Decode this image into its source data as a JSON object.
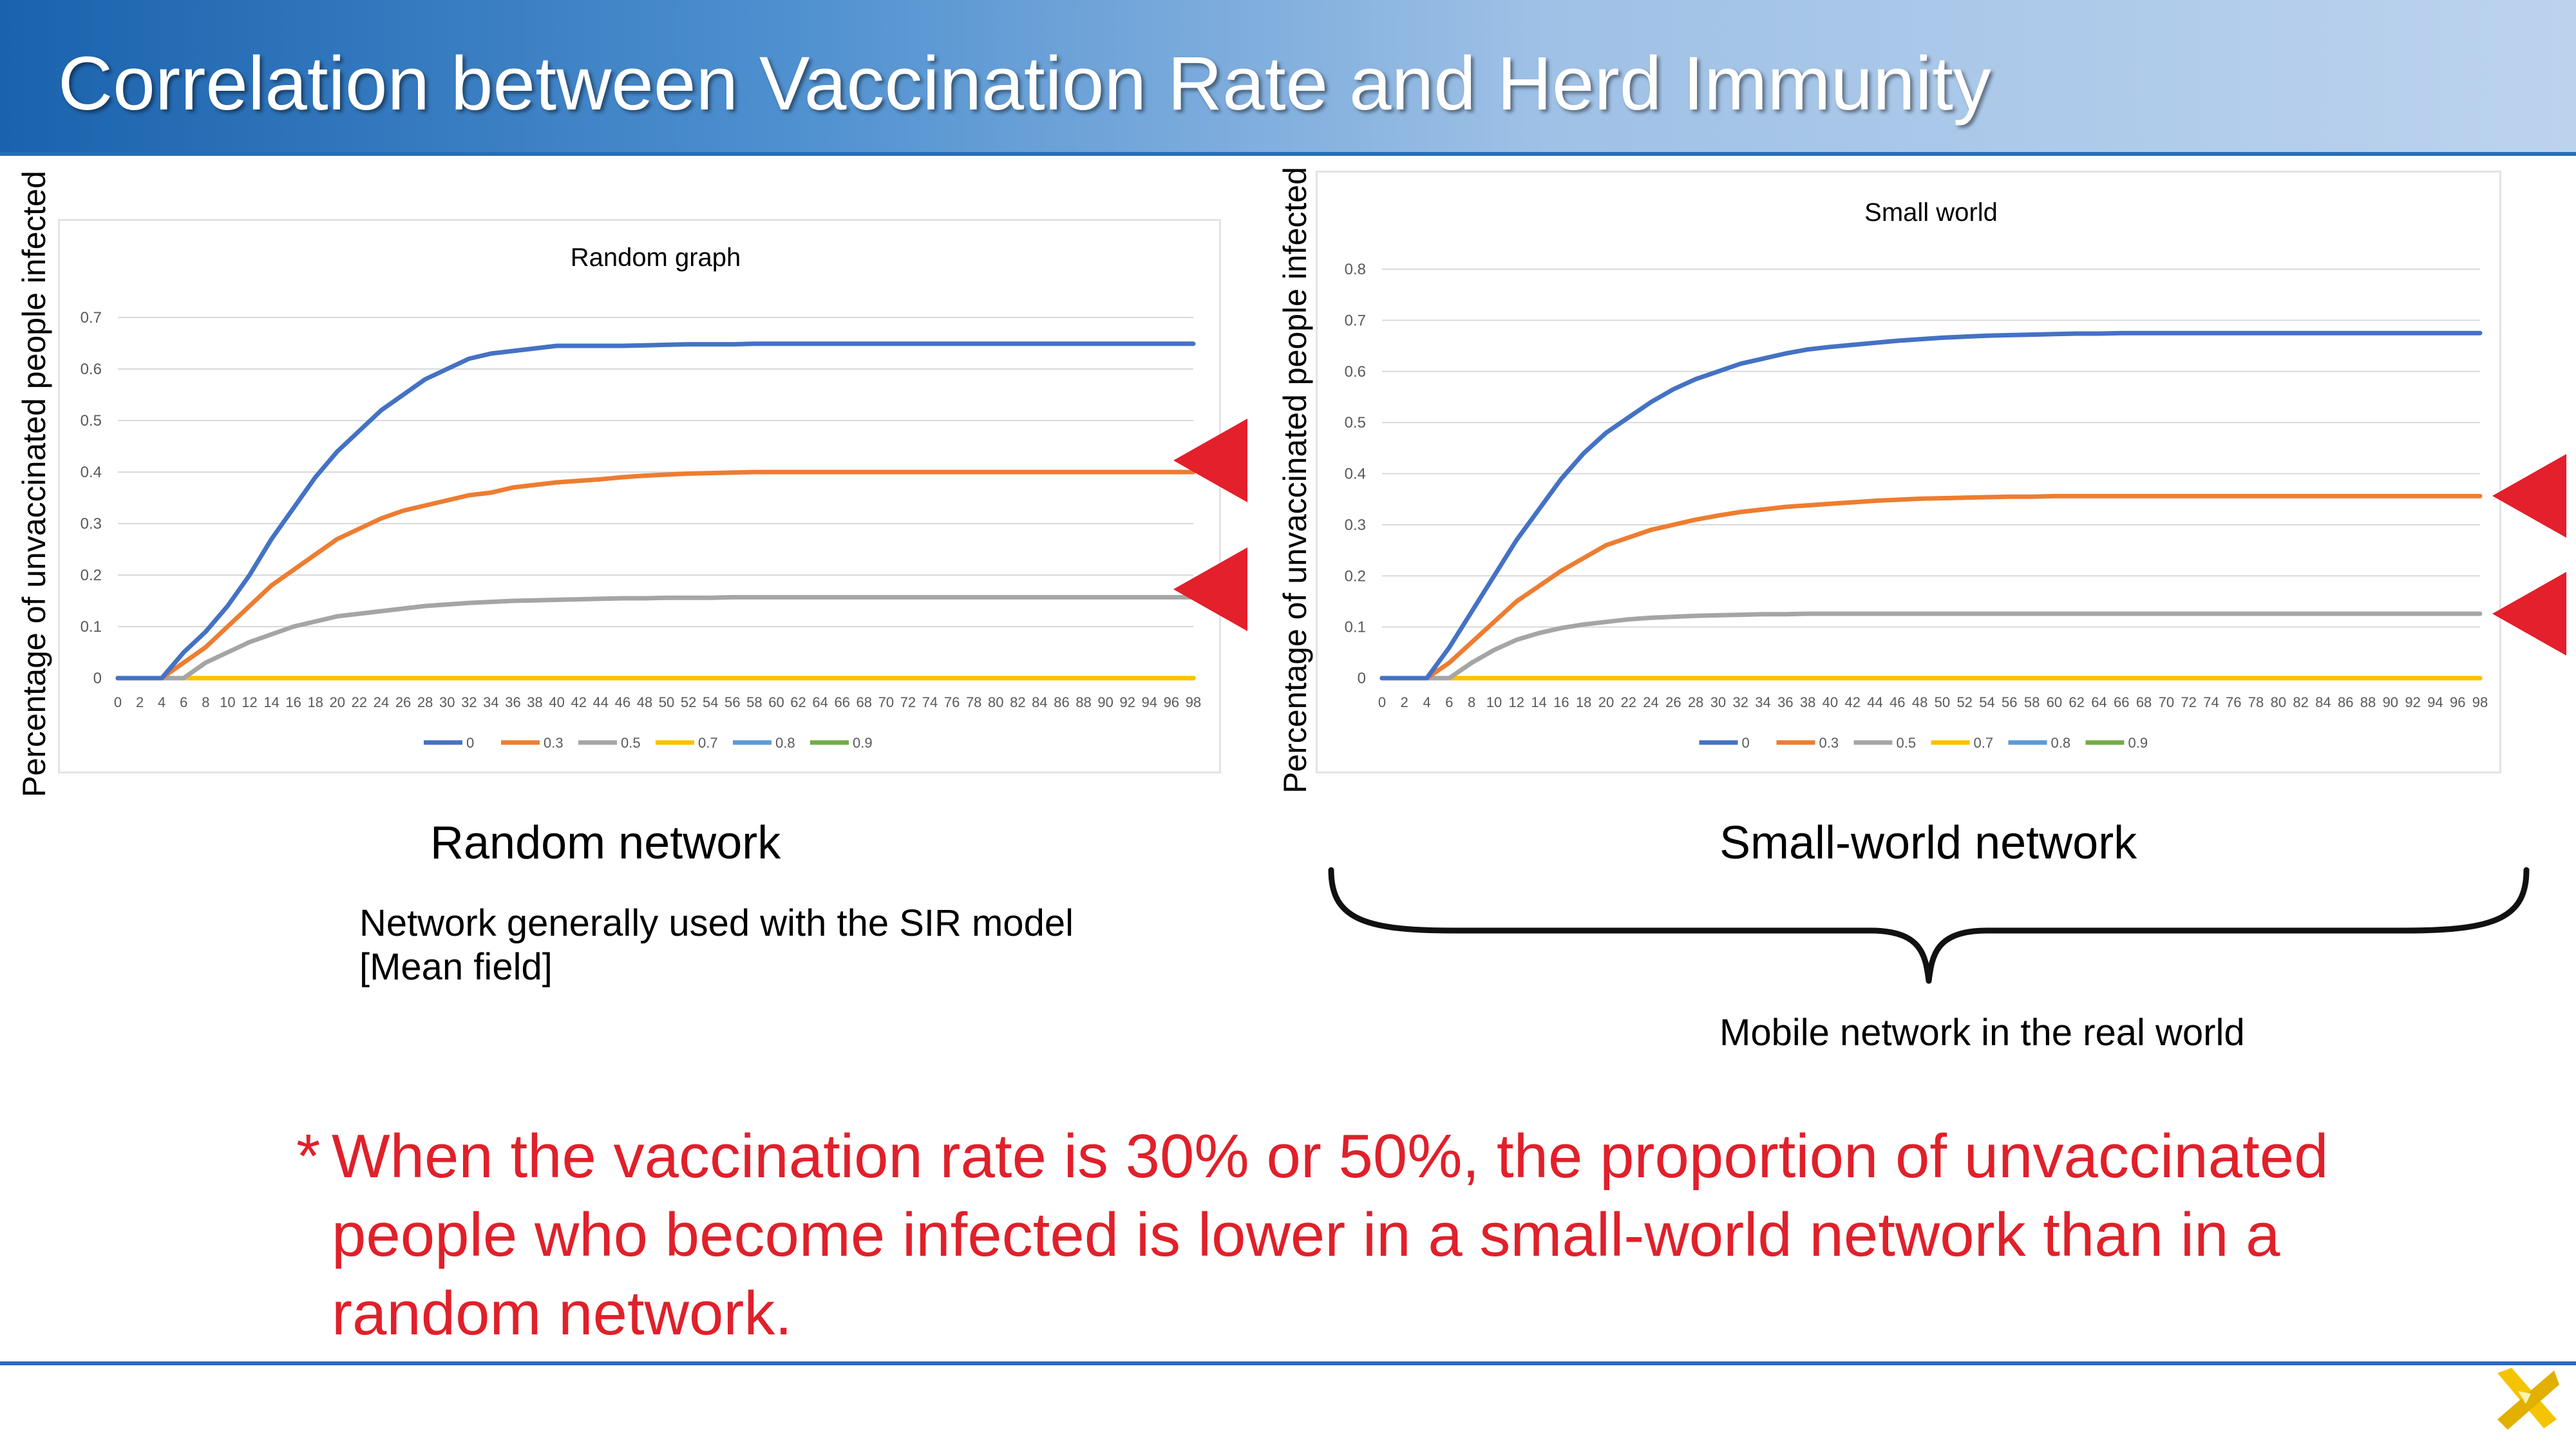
{
  "slide": {
    "title": "Correlation between Vaccination Rate and Herd Immunity",
    "left_caption": "Random network",
    "left_description": [
      "Network generally used with the SIR model",
      "[Mean field]"
    ],
    "right_caption": "Small-world network",
    "right_description": "Mobile network in the real world",
    "note_star": "*",
    "note": "When the vaccination rate is 30% or 50%, the proportion of unvaccinated people who become infected is lower in a small-world network than in a random network.",
    "y_axis_label": "Percentage of unvaccinated people infected",
    "marker_color": "#e3202b",
    "icons": [
      "red-triangle-marker-icon",
      "brace-icon",
      "cross-logo-icon"
    ]
  },
  "chart_data": [
    {
      "type": "line",
      "title": "Random graph",
      "ylabel": "Percentage of unvaccinated people infected",
      "x": [
        0,
        2,
        4,
        6,
        8,
        10,
        12,
        14,
        16,
        18,
        20,
        22,
        24,
        26,
        28,
        30,
        32,
        34,
        36,
        38,
        40,
        42,
        44,
        46,
        48,
        50,
        52,
        54,
        56,
        58,
        60,
        62,
        64,
        66,
        68,
        70,
        72,
        74,
        76,
        78,
        80,
        82,
        84,
        86,
        88,
        90,
        92,
        94,
        96,
        98
      ],
      "ylim": [
        0,
        0.7
      ],
      "yticks": [
        0,
        0.1,
        0.2,
        0.3,
        0.4,
        0.5,
        0.6,
        0.7
      ],
      "grid": true,
      "legend": "bottom",
      "series": [
        {
          "name": "0",
          "color": "#4472c4",
          "values": [
            0,
            0,
            0,
            0.05,
            0.09,
            0.14,
            0.2,
            0.27,
            0.33,
            0.39,
            0.44,
            0.48,
            0.52,
            0.55,
            0.58,
            0.6,
            0.62,
            0.63,
            0.635,
            0.64,
            0.645,
            0.645,
            0.645,
            0.645,
            0.646,
            0.647,
            0.648,
            0.648,
            0.648,
            0.649,
            0.649,
            0.649,
            0.649,
            0.649,
            0.649,
            0.649,
            0.649,
            0.649,
            0.649,
            0.649,
            0.649,
            0.649,
            0.649,
            0.649,
            0.649,
            0.649,
            0.649,
            0.649,
            0.649,
            0.649
          ]
        },
        {
          "name": "0.3",
          "color": "#ed7d31",
          "values": [
            0,
            0,
            0,
            0.03,
            0.06,
            0.1,
            0.14,
            0.18,
            0.21,
            0.24,
            0.27,
            0.29,
            0.31,
            0.325,
            0.335,
            0.345,
            0.355,
            0.36,
            0.37,
            0.375,
            0.38,
            0.383,
            0.386,
            0.39,
            0.393,
            0.395,
            0.397,
            0.398,
            0.399,
            0.4,
            0.4,
            0.4,
            0.4,
            0.4,
            0.4,
            0.4,
            0.4,
            0.4,
            0.4,
            0.4,
            0.4,
            0.4,
            0.4,
            0.4,
            0.4,
            0.4,
            0.4,
            0.4,
            0.4,
            0.4
          ]
        },
        {
          "name": "0.5",
          "color": "#a5a5a5",
          "values": [
            0,
            0,
            0,
            0,
            0.03,
            0.05,
            0.07,
            0.085,
            0.1,
            0.11,
            0.12,
            0.125,
            0.13,
            0.135,
            0.14,
            0.143,
            0.146,
            0.148,
            0.15,
            0.151,
            0.152,
            0.153,
            0.154,
            0.155,
            0.155,
            0.156,
            0.156,
            0.156,
            0.157,
            0.157,
            0.157,
            0.157,
            0.157,
            0.157,
            0.157,
            0.157,
            0.157,
            0.157,
            0.157,
            0.157,
            0.157,
            0.157,
            0.157,
            0.157,
            0.157,
            0.157,
            0.157,
            0.157,
            0.157,
            0.157
          ]
        },
        {
          "name": "0.7",
          "color": "#ffc000",
          "values": [
            0,
            0,
            0,
            0,
            0,
            0,
            0,
            0,
            0,
            0,
            0,
            0,
            0,
            0,
            0,
            0,
            0,
            0,
            0,
            0,
            0,
            0,
            0,
            0,
            0,
            0,
            0,
            0,
            0,
            0,
            0,
            0,
            0,
            0,
            0,
            0,
            0,
            0,
            0,
            0,
            0,
            0,
            0,
            0,
            0,
            0,
            0,
            0,
            0,
            0
          ]
        },
        {
          "name": "0.8",
          "color": "#5b9bd5",
          "values": [
            0,
            0,
            0,
            0,
            0,
            0,
            0,
            0,
            0,
            0,
            0,
            0,
            0,
            0,
            0,
            0,
            0,
            0,
            0,
            0,
            0,
            0,
            0,
            0,
            0,
            0,
            0,
            0,
            0,
            0,
            0,
            0,
            0,
            0,
            0,
            0,
            0,
            0,
            0,
            0,
            0,
            0,
            0,
            0,
            0,
            0,
            0,
            0,
            0,
            0
          ]
        },
        {
          "name": "0.9",
          "color": "#70ad47",
          "values": [
            0,
            0,
            0,
            0,
            0,
            0,
            0,
            0,
            0,
            0,
            0,
            0,
            0,
            0,
            0,
            0,
            0,
            0,
            0,
            0,
            0,
            0,
            0,
            0,
            0,
            0,
            0,
            0,
            0,
            0,
            0,
            0,
            0,
            0,
            0,
            0,
            0,
            0,
            0,
            0,
            0,
            0,
            0,
            0,
            0,
            0,
            0,
            0,
            0,
            0
          ]
        }
      ]
    },
    {
      "type": "line",
      "title": "Small world",
      "ylabel": "Percentage of unvaccinated people infected",
      "x": [
        0,
        2,
        4,
        6,
        8,
        10,
        12,
        14,
        16,
        18,
        20,
        22,
        24,
        26,
        28,
        30,
        32,
        34,
        36,
        38,
        40,
        42,
        44,
        46,
        48,
        50,
        52,
        54,
        56,
        58,
        60,
        62,
        64,
        66,
        68,
        70,
        72,
        74,
        76,
        78,
        80,
        82,
        84,
        86,
        88,
        90,
        92,
        94,
        96,
        98
      ],
      "ylim": [
        0,
        0.8
      ],
      "yticks": [
        0,
        0.1,
        0.2,
        0.3,
        0.4,
        0.5,
        0.6,
        0.7,
        0.8
      ],
      "grid": true,
      "legend": "bottom",
      "series": [
        {
          "name": "0",
          "color": "#4472c4",
          "values": [
            0,
            0,
            0,
            0.06,
            0.13,
            0.2,
            0.27,
            0.33,
            0.39,
            0.44,
            0.48,
            0.51,
            0.54,
            0.565,
            0.585,
            0.6,
            0.615,
            0.625,
            0.635,
            0.643,
            0.648,
            0.652,
            0.656,
            0.66,
            0.663,
            0.666,
            0.668,
            0.67,
            0.671,
            0.672,
            0.673,
            0.674,
            0.674,
            0.675,
            0.675,
            0.675,
            0.675,
            0.675,
            0.675,
            0.675,
            0.675,
            0.675,
            0.675,
            0.675,
            0.675,
            0.675,
            0.675,
            0.675,
            0.675,
            0.675
          ]
        },
        {
          "name": "0.3",
          "color": "#ed7d31",
          "values": [
            0,
            0,
            0,
            0.03,
            0.07,
            0.11,
            0.15,
            0.18,
            0.21,
            0.235,
            0.26,
            0.275,
            0.29,
            0.3,
            0.31,
            0.318,
            0.325,
            0.33,
            0.335,
            0.338,
            0.341,
            0.344,
            0.347,
            0.349,
            0.351,
            0.352,
            0.353,
            0.354,
            0.355,
            0.355,
            0.356,
            0.356,
            0.356,
            0.356,
            0.356,
            0.356,
            0.356,
            0.356,
            0.356,
            0.356,
            0.356,
            0.356,
            0.356,
            0.356,
            0.356,
            0.356,
            0.356,
            0.356,
            0.356,
            0.356
          ]
        },
        {
          "name": "0.5",
          "color": "#a5a5a5",
          "values": [
            0,
            0,
            0,
            0,
            0.03,
            0.055,
            0.075,
            0.088,
            0.098,
            0.105,
            0.11,
            0.115,
            0.118,
            0.12,
            0.122,
            0.123,
            0.124,
            0.125,
            0.125,
            0.126,
            0.126,
            0.126,
            0.126,
            0.126,
            0.126,
            0.126,
            0.126,
            0.126,
            0.126,
            0.126,
            0.126,
            0.126,
            0.126,
            0.126,
            0.126,
            0.126,
            0.126,
            0.126,
            0.126,
            0.126,
            0.126,
            0.126,
            0.126,
            0.126,
            0.126,
            0.126,
            0.126,
            0.126,
            0.126,
            0.126
          ]
        },
        {
          "name": "0.7",
          "color": "#ffc000",
          "values": [
            0,
            0,
            0,
            0,
            0,
            0,
            0,
            0,
            0,
            0,
            0,
            0,
            0,
            0,
            0,
            0,
            0,
            0,
            0,
            0,
            0,
            0,
            0,
            0,
            0,
            0,
            0,
            0,
            0,
            0,
            0,
            0,
            0,
            0,
            0,
            0,
            0,
            0,
            0,
            0,
            0,
            0,
            0,
            0,
            0,
            0,
            0,
            0,
            0,
            0
          ]
        },
        {
          "name": "0.8",
          "color": "#5b9bd5",
          "values": [
            0,
            0,
            0,
            0,
            0,
            0,
            0,
            0,
            0,
            0,
            0,
            0,
            0,
            0,
            0,
            0,
            0,
            0,
            0,
            0,
            0,
            0,
            0,
            0,
            0,
            0,
            0,
            0,
            0,
            0,
            0,
            0,
            0,
            0,
            0,
            0,
            0,
            0,
            0,
            0,
            0,
            0,
            0,
            0,
            0,
            0,
            0,
            0,
            0,
            0
          ]
        },
        {
          "name": "0.9",
          "color": "#70ad47",
          "values": [
            0,
            0,
            0,
            0,
            0,
            0,
            0,
            0,
            0,
            0,
            0,
            0,
            0,
            0,
            0,
            0,
            0,
            0,
            0,
            0,
            0,
            0,
            0,
            0,
            0,
            0,
            0,
            0,
            0,
            0,
            0,
            0,
            0,
            0,
            0,
            0,
            0,
            0,
            0,
            0,
            0,
            0,
            0,
            0,
            0,
            0,
            0,
            0,
            0,
            0
          ]
        }
      ]
    }
  ]
}
